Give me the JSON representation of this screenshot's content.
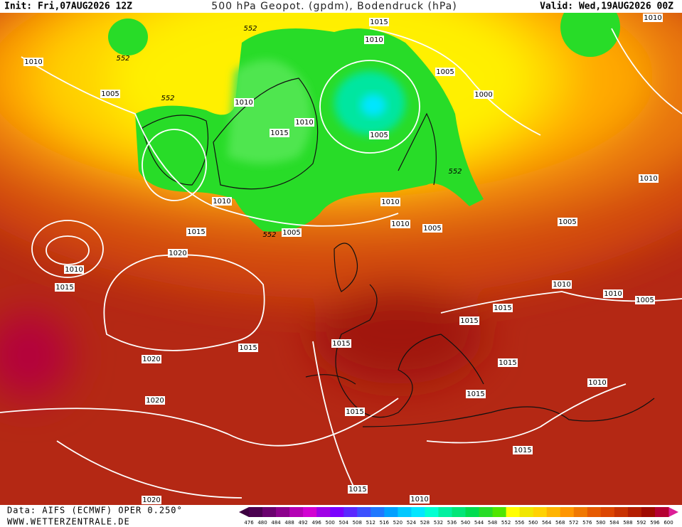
{
  "header": {
    "init": "Init: Fri,07AUG2026 12Z",
    "title": "500 hPa Geopot. (gpdm), Bodendruck (hPa)",
    "valid": "Valid: Wed,19AUG2026 00Z"
  },
  "footer": {
    "data": "Data: AIFS (ECMWF) OPER 0.250°",
    "site": "WWW.WETTERZENTRALE.DE"
  },
  "colorbar": {
    "values": [
      476,
      480,
      484,
      488,
      492,
      496,
      500,
      504,
      508,
      512,
      516,
      520,
      524,
      528,
      532,
      536,
      540,
      544,
      548,
      552,
      556,
      560,
      564,
      568,
      572,
      576,
      580,
      584,
      588,
      592,
      596,
      600
    ]
  },
  "map": {
    "labels": [
      "1010",
      "1005",
      "552",
      "552",
      "552",
      "1015",
      "1010",
      "1005",
      "1000",
      "1010",
      "1010",
      "1015",
      "1005",
      "1010",
      "552",
      "1010",
      "1010",
      "1010",
      "1010",
      "1005",
      "1005",
      "1015",
      "552",
      "1005",
      "1020",
      "1010",
      "1015",
      "1010",
      "1010",
      "1005",
      "1015",
      "1015",
      "1015",
      "1015",
      "1020",
      "1015",
      "1010",
      "1015",
      "1020",
      "1015",
      "1015",
      "1015",
      "1010",
      "1020"
    ]
  }
}
